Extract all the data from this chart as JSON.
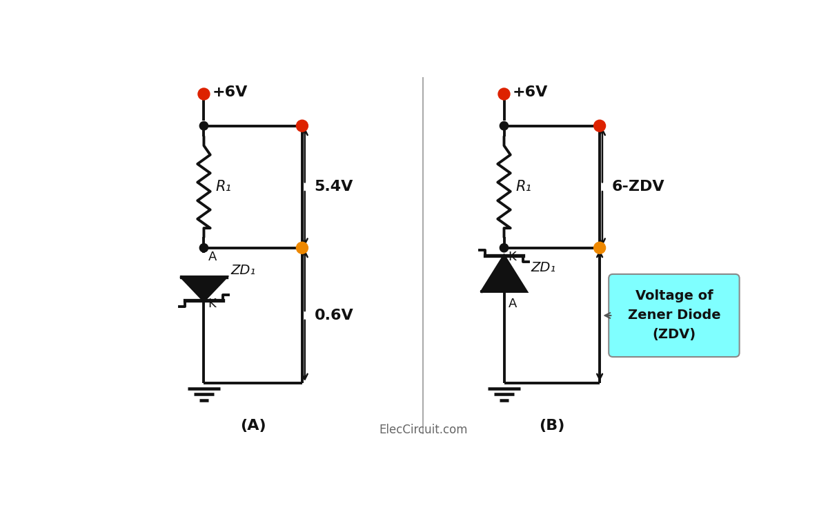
{
  "bg_color": "#ffffff",
  "label_A": "(A)",
  "label_B": "(B)",
  "watermark": "ElecCircuit.com",
  "circuit_A": {
    "vcc_label": "+6V",
    "r1_label": "R₁",
    "zd_label": "ZD₁",
    "a_label": "A",
    "k_label": "K",
    "v1_label": "5.4V",
    "v2_label": "0.6V",
    "dot_color_red": "#dd2200",
    "dot_color_orange": "#ee8800",
    "dot_color_dark": "#1a1a1a"
  },
  "circuit_B": {
    "vcc_label": "+6V",
    "r1_label": "R₁",
    "zd_label": "ZD₁",
    "a_label": "A",
    "k_label": "K",
    "v1_label": "6-ZDV",
    "bubble_text": "Voltage of\nZener Diode\n(ZDV)",
    "bubble_color": "#7fffff",
    "dot_color_red": "#dd2200",
    "dot_color_orange": "#ee8800",
    "dot_color_dark": "#1a1a1a"
  }
}
